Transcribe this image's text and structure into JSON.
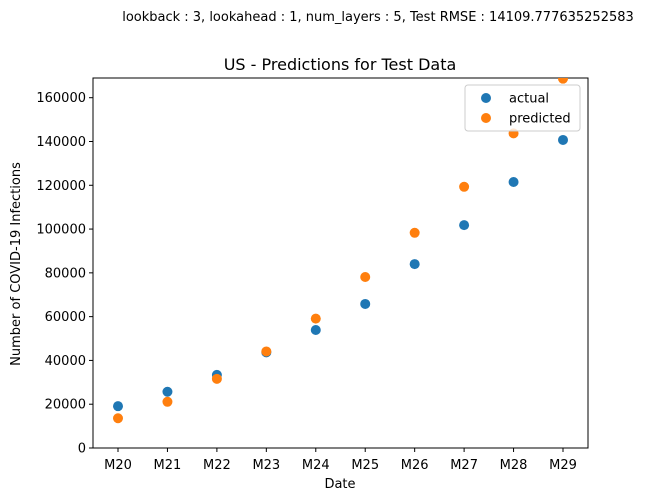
{
  "figure": {
    "suptitle": "lookback : 3, lookahead : 1, num_layers : 5, Test RMSE : 14109.777635252583"
  },
  "chart_data": {
    "type": "scatter",
    "title": "US - Predictions for Test Data",
    "xlabel": "Date",
    "ylabel": "Number of COVID-19 Infections",
    "categories": [
      "M20",
      "M21",
      "M22",
      "M23",
      "M24",
      "M25",
      "M26",
      "M27",
      "M28",
      "M29"
    ],
    "series": [
      {
        "name": "actual",
        "color": "#1f77b4",
        "values": [
          19100,
          25700,
          33400,
          43700,
          53900,
          65800,
          84000,
          101800,
          121500,
          140700
        ]
      },
      {
        "name": "predicted",
        "color": "#ff7f0e",
        "values": [
          13600,
          21100,
          31600,
          44100,
          59100,
          78100,
          98300,
          119300,
          143700,
          168700
        ]
      }
    ],
    "ylim": [
      0,
      169000
    ],
    "yticks": [
      0,
      20000,
      40000,
      60000,
      80000,
      100000,
      120000,
      140000,
      160000
    ],
    "grid": false,
    "legend_position": "upper right"
  }
}
